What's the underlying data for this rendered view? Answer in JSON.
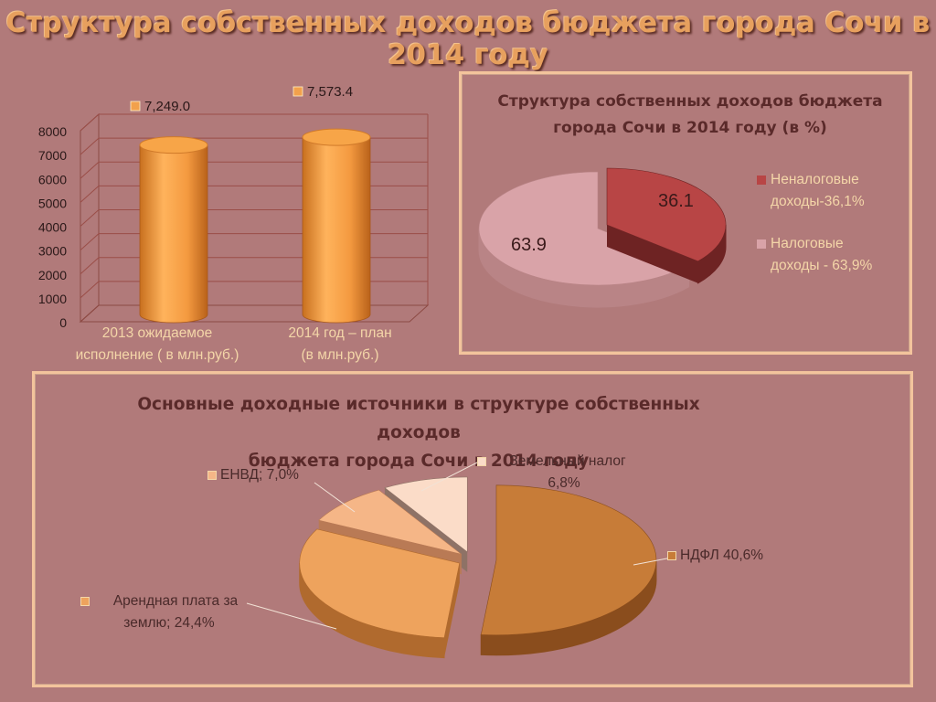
{
  "title": "Структура собственных доходов бюджета города Сочи в 2014 году",
  "bar_labels": [
    "7,249.0",
    "7,573.4"
  ],
  "bar_category_lines": [
    [
      "2013 ожидаемое",
      "исполнение ( в млн.руб.)"
    ],
    [
      "2014 год – план",
      "(в млн.руб.)"
    ]
  ],
  "pie1_title_lines": [
    "Структура собственных доходов бюджета",
    "города Сочи  в 2014 году (в %)"
  ],
  "pie1_data_labels": [
    "36.1",
    "63.9"
  ],
  "pie1_legend_lines": [
    [
      "Неналоговые",
      "доходы-36,1%"
    ],
    [
      "Налоговые",
      "доходы - 63,9%"
    ]
  ],
  "pie2_title_lines": [
    "Основные доходные источники в структуре собственных доходов",
    "бюджета города Сочи в 2014 году"
  ],
  "pie2_label_lines": [
    [
      "НДФЛ 40,6%"
    ],
    [
      "Арендная плата за",
      "землю; 24,4%"
    ],
    [
      "ЕНВД; 7,0%"
    ],
    [
      "Земельный налог",
      "6,8%"
    ]
  ],
  "colors": {
    "background": "#b17a7a",
    "bar": "#f2a14c",
    "nontax": "#b84545",
    "tax": "#d9a3a8",
    "ndfl": "#c77c38",
    "rent": "#eea35d",
    "envd": "#f5b687",
    "land": "#fbdcc8",
    "label_text": "#f4d6a8",
    "dark_text": "#4a2a2a"
  },
  "chart_data": [
    {
      "type": "bar",
      "categories": [
        "2013 ожидаемое исполнение ( в млн.руб.)",
        "2014 год – план (в млн.руб.)"
      ],
      "values": [
        7249.0,
        7573.4
      ],
      "ylim": [
        0,
        8000
      ],
      "yticks": [
        "0",
        "1000",
        "2000",
        "3000",
        "4000",
        "5000",
        "6000",
        "7000",
        "8000"
      ],
      "grid": true,
      "style": "3d-cylinder"
    },
    {
      "type": "pie",
      "title": "Структура собственных доходов бюджета города Сочи  в 2014 году (в %)",
      "labels": [
        "Неналоговые доходы-36,1%",
        "Налоговые доходы - 63,9%"
      ],
      "values": [
        36.1,
        63.9
      ],
      "legend": "right",
      "style": "3d-exploded"
    },
    {
      "type": "pie",
      "title": "Основные доходные источники в структуре собственных доходов бюджета города Сочи в 2014 году",
      "labels": [
        "НДФЛ",
        "Арендная плата за землю",
        "ЕНВД",
        "Земельный налог"
      ],
      "values": [
        40.6,
        24.4,
        7.0,
        6.8
      ],
      "style": "3d-exploded"
    }
  ]
}
